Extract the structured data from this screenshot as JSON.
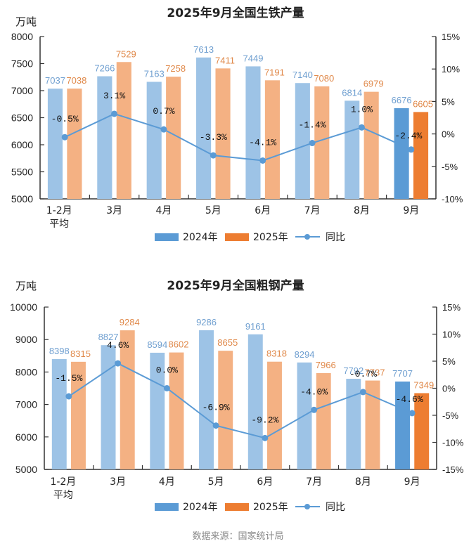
{
  "colors": {
    "bar2024": "#9dc3e6",
    "bar2025": "#f4b183",
    "bar2024_highlight": "#5b9bd5",
    "bar2025_highlight": "#ed7d31",
    "line": "#5b9bd5",
    "label2024": "#6f9fd0",
    "label2025": "#e0894a",
    "axis": "#333333"
  },
  "source": "数据来源：国家统计局",
  "chart_data": [
    {
      "type": "bar",
      "title": "2025年9月全国生铁产量",
      "ylabel": "万吨",
      "ylim": [
        5000,
        8000
      ],
      "yticks": [
        5000,
        5500,
        6000,
        6500,
        7000,
        7500,
        8000
      ],
      "y2lim": [
        -10,
        15
      ],
      "y2ticks": [
        "-10%",
        "-5%",
        "0%",
        "5%",
        "10%",
        "15%"
      ],
      "y2tick_values": [
        -10,
        -5,
        0,
        5,
        10,
        15
      ],
      "categories": [
        "1-2月\n平均",
        "3月",
        "4月",
        "5月",
        "6月",
        "7月",
        "8月",
        "9月"
      ],
      "category_lines": [
        [
          "1-2月",
          "平均"
        ],
        [
          "3月"
        ],
        [
          "4月"
        ],
        [
          "5月"
        ],
        [
          "6月"
        ],
        [
          "7月"
        ],
        [
          "8月"
        ],
        [
          "9月"
        ]
      ],
      "series": [
        {
          "name": "2024年",
          "kind": "bar",
          "values": [
            7037,
            7266,
            7163,
            7613,
            7449,
            7140,
            6814,
            6676
          ]
        },
        {
          "name": "2025年",
          "kind": "bar",
          "values": [
            7038,
            7529,
            7258,
            7411,
            7191,
            7080,
            6979,
            6605
          ]
        },
        {
          "name": "同比",
          "kind": "line",
          "axis": "right",
          "values": [
            -0.5,
            3.1,
            0.7,
            -3.3,
            -4.1,
            -1.4,
            1.0,
            -2.4
          ],
          "labels": [
            "-0.5%",
            "3.1%",
            "0.7%",
            "-3.3%",
            "-4.1%",
            "-1.4%",
            "1.0%",
            "-2.4%"
          ]
        }
      ],
      "highlight_index": 7,
      "legend": [
        "2024年",
        "2025年",
        "同比"
      ],
      "legend_position": "bottom",
      "grid": false
    },
    {
      "type": "bar",
      "title": "2025年9月全国粗钢产量",
      "ylabel": "万吨",
      "ylim": [
        5000,
        10000
      ],
      "yticks": [
        5000,
        6000,
        7000,
        8000,
        9000,
        10000
      ],
      "y2lim": [
        -15,
        15
      ],
      "y2ticks": [
        "-15%",
        "-10%",
        "-5%",
        "0%",
        "5%",
        "10%",
        "15%"
      ],
      "y2tick_values": [
        -15,
        -10,
        -5,
        0,
        5,
        10,
        15
      ],
      "categories": [
        "1-2月\n平均",
        "3月",
        "4月",
        "5月",
        "6月",
        "7月",
        "8月",
        "9月"
      ],
      "category_lines": [
        [
          "1-2月",
          "平均"
        ],
        [
          "3月"
        ],
        [
          "4月"
        ],
        [
          "5月"
        ],
        [
          "6月"
        ],
        [
          "7月"
        ],
        [
          "8月"
        ],
        [
          "9月"
        ]
      ],
      "series": [
        {
          "name": "2024年",
          "kind": "bar",
          "values": [
            8398,
            8827,
            8594,
            9286,
            9161,
            8294,
            7792,
            7707
          ]
        },
        {
          "name": "2025年",
          "kind": "bar",
          "values": [
            8315,
            9284,
            8602,
            8655,
            8318,
            7966,
            7737,
            7349
          ]
        },
        {
          "name": "同比",
          "kind": "line",
          "axis": "right",
          "values": [
            -1.5,
            4.6,
            0.0,
            -6.9,
            -9.2,
            -4.0,
            -0.7,
            -4.6
          ],
          "labels": [
            "-1.5%",
            "4.6%",
            "0.0%",
            "-6.9%",
            "-9.2%",
            "-4.0%",
            "-0.7%",
            "-4.6%"
          ]
        }
      ],
      "highlight_index": 7,
      "legend": [
        "2024年",
        "2025年",
        "同比"
      ],
      "legend_position": "bottom",
      "grid": false
    }
  ]
}
